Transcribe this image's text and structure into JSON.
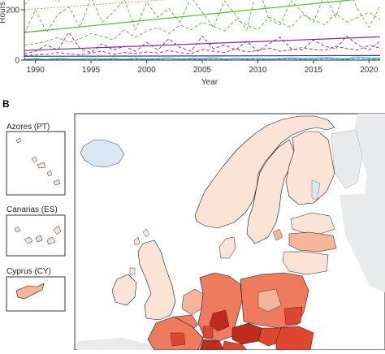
{
  "panels": {
    "b": {
      "label": "B"
    }
  },
  "chart_data": {
    "type": "line",
    "title": "",
    "xlabel": "Year",
    "ylabel": "Hours",
    "x_ticks": [
      1990,
      1995,
      2000,
      2005,
      2010,
      2015,
      2020
    ],
    "y_ticks_visible": [
      0,
      200
    ],
    "xlim": [
      1989,
      2021
    ],
    "ylim_visible": [
      0,
      290
    ],
    "grid": false,
    "series": [
      {
        "color": "#f08a60",
        "style": "dashed",
        "x": [
          1989,
          1990,
          1991,
          1992,
          1993,
          1994,
          1995,
          1996,
          1997,
          1998,
          1999,
          2000,
          2001,
          2002,
          2003,
          2004,
          2005,
          2006,
          2007,
          2008,
          2009,
          2010,
          2011,
          2012,
          2013,
          2014,
          2015,
          2016,
          2017,
          2018,
          2019,
          2020,
          2021
        ],
        "values": [
          220,
          260,
          275,
          230,
          285,
          250,
          240,
          290,
          255,
          270,
          295,
          280,
          260,
          290,
          300,
          270,
          300,
          285,
          275,
          300,
          290,
          295,
          300,
          285,
          300,
          290,
          300,
          295,
          300,
          300,
          295,
          300,
          300
        ]
      },
      {
        "color": "#f08a60",
        "style": "dotted",
        "x": [
          1989,
          2021
        ],
        "values": [
          200,
          300
        ]
      },
      {
        "color": "#5fb03a",
        "style": "dashed",
        "x": [
          1989,
          1990,
          1991,
          1992,
          1993,
          1994,
          1995,
          1996,
          1997,
          1998,
          1999,
          2000,
          2001,
          2002,
          2003,
          2004,
          2005,
          2006,
          2007,
          2008,
          2009,
          2010,
          2011,
          2012,
          2013,
          2014,
          2015,
          2016,
          2017,
          2018,
          2019,
          2020,
          2021
        ],
        "values": [
          105,
          200,
          110,
          180,
          210,
          130,
          250,
          150,
          190,
          240,
          120,
          230,
          170,
          205,
          150,
          250,
          190,
          130,
          235,
          180,
          120,
          300,
          160,
          140,
          235,
          190,
          150,
          260,
          170,
          300,
          200,
          130,
          215
        ]
      },
      {
        "color": "#5fb03a",
        "style": "solid",
        "x": [
          1989,
          2021
        ],
        "values": [
          110,
          250
        ]
      },
      {
        "color": "#5fb03a",
        "style": "dashed",
        "x": [
          1989,
          1990,
          1991,
          1992,
          1993,
          1994,
          1995,
          1996,
          1997,
          1998,
          1999,
          2000,
          2001,
          2002,
          2003,
          2004,
          2005,
          2006,
          2007,
          2008,
          2009,
          2010,
          2011,
          2012,
          2013,
          2014,
          2015,
          2016,
          2017,
          2018,
          2019,
          2020,
          2021
        ],
        "values": [
          60,
          65,
          75,
          90,
          70,
          85,
          105,
          95,
          80,
          120,
          90,
          115,
          130,
          105,
          140,
          120,
          150,
          135,
          115,
          160,
          140,
          120,
          170,
          150,
          130,
          180,
          160,
          140,
          185,
          150,
          170,
          190,
          160
        ]
      },
      {
        "color": "#7b2a8e",
        "style": "dashed",
        "x": [
          1989,
          1990,
          1991,
          1992,
          1993,
          1994,
          1995,
          1996,
          1997,
          1998,
          1999,
          2000,
          2001,
          2002,
          2003,
          2004,
          2005,
          2006,
          2007,
          2008,
          2009,
          2010,
          2011,
          2012,
          2013,
          2014,
          2015,
          2016,
          2017,
          2018,
          2019,
          2020,
          2021
        ],
        "values": [
          25,
          35,
          60,
          40,
          110,
          45,
          30,
          65,
          40,
          55,
          35,
          70,
          40,
          85,
          50,
          35,
          95,
          45,
          60,
          40,
          75,
          35,
          65,
          90,
          45,
          40,
          80,
          55,
          45,
          95,
          60,
          40,
          75
        ]
      },
      {
        "color": "#7b2a8e",
        "style": "solid",
        "x": [
          1989,
          2021
        ],
        "values": [
          38,
          92
        ]
      },
      {
        "color": "#7b2a8e",
        "style": "dashed",
        "x": [
          1989,
          1990,
          1991,
          1992,
          1993,
          1994,
          1995,
          1996,
          1997,
          1998,
          1999,
          2000,
          2001,
          2002,
          2003,
          2004,
          2005,
          2006,
          2007,
          2008,
          2009,
          2010,
          2011,
          2012,
          2013,
          2014,
          2015,
          2016,
          2017,
          2018,
          2019,
          2020,
          2021
        ],
        "values": [
          18,
          20,
          22,
          30,
          25,
          20,
          28,
          35,
          22,
          30,
          26,
          32,
          28,
          38,
          30,
          25,
          42,
          35,
          30,
          45,
          32,
          38,
          48,
          35,
          40,
          50,
          42,
          38,
          55,
          45,
          40,
          58,
          48
        ]
      },
      {
        "color": "#3a3a8e",
        "style": "solid",
        "x": [
          1989,
          2021
        ],
        "values": [
          15,
          18
        ]
      },
      {
        "color": "#2aa9c0",
        "style": "solid",
        "x": [
          1989,
          1990,
          1991,
          1992,
          1993,
          1994,
          1995,
          1996,
          1997,
          1998,
          1999,
          2000,
          2001,
          2002,
          2003,
          2004,
          2005,
          2006,
          2007,
          2008,
          2009,
          2010,
          2011,
          2012,
          2013,
          2014,
          2015,
          2016,
          2017,
          2018,
          2019,
          2020,
          2021
        ],
        "values": [
          3,
          5,
          2,
          6,
          4,
          3,
          7,
          4,
          5,
          3,
          6,
          4,
          5,
          8,
          4,
          6,
          5,
          9,
          4,
          6,
          5,
          7,
          4,
          6,
          8,
          5,
          7,
          10,
          6,
          5,
          12,
          8,
          6
        ]
      },
      {
        "color": "#2aa9c0",
        "style": "dashed",
        "x": [
          1989,
          1990,
          1991,
          1992,
          1993,
          1994,
          1995,
          1996,
          1997,
          1998,
          1999,
          2000,
          2001,
          2002,
          2003,
          2004,
          2005,
          2006,
          2007,
          2008,
          2009,
          2010,
          2011,
          2012,
          2013,
          2014,
          2015,
          2016,
          2017,
          2018,
          2019,
          2020,
          2021
        ],
        "values": [
          2,
          3,
          1,
          2,
          3,
          2,
          1,
          3,
          2,
          4,
          2,
          3,
          2,
          1,
          3,
          2,
          4,
          3,
          2,
          5,
          3,
          2,
          4,
          3,
          5,
          3,
          2,
          6,
          4,
          3,
          5,
          4,
          3
        ]
      }
    ]
  },
  "map": {
    "insets": [
      {
        "label": "Azores (PT)"
      },
      {
        "label": "Canarias (ES)"
      },
      {
        "label": "Cyprus (CY)"
      }
    ],
    "colors": {
      "sea": "#ffffff",
      "non_eu_land": "#e8eaec",
      "iceland_fill": "#d8e8f4",
      "low": "#fbe3d6",
      "mid_low": "#f6b59a",
      "mid": "#ef7b5e",
      "high": "#e04530",
      "very_high": "#c12a1f",
      "border": "#1a1a1a"
    }
  }
}
